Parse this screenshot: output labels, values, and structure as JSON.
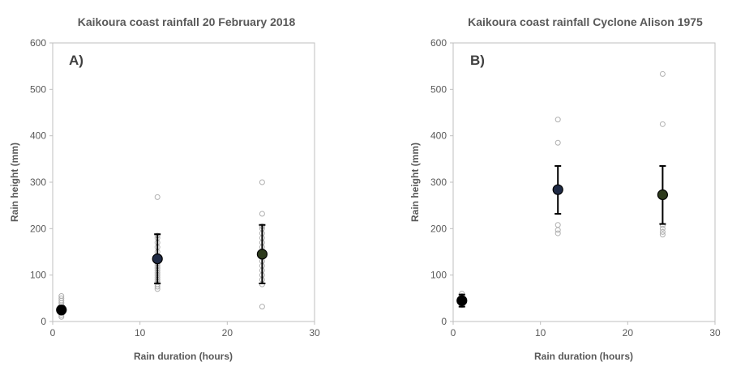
{
  "chart_data": [
    {
      "type": "scatter",
      "title": "Kaikoura coast rainfall 20 February 2018",
      "panel_label": "A)",
      "xlabel": "Rain duration (hours)",
      "ylabel": "Rain height (mm)",
      "xlim": [
        0,
        30
      ],
      "ylim": [
        0,
        600
      ],
      "xticks": [
        0,
        10,
        20,
        30
      ],
      "yticks": [
        0,
        100,
        200,
        300,
        400,
        500,
        600
      ],
      "grid": false,
      "individual_points": [
        {
          "x": 1,
          "values": [
            10,
            14,
            18,
            22,
            26,
            30,
            35,
            40,
            45,
            50,
            55
          ]
        },
        {
          "x": 12,
          "values": [
            70,
            75,
            80,
            85,
            90,
            95,
            100,
            105,
            110,
            115,
            120,
            125,
            130,
            140,
            150,
            160,
            170,
            180,
            185,
            268
          ]
        },
        {
          "x": 24,
          "values": [
            32,
            80,
            90,
            100,
            110,
            120,
            130,
            140,
            150,
            160,
            170,
            180,
            190,
            200,
            205,
            232,
            300
          ]
        }
      ],
      "means": [
        {
          "x": 1,
          "y": 25,
          "lower": 17,
          "upper": 33,
          "color": "#000000"
        },
        {
          "x": 12,
          "y": 135,
          "lower": 82,
          "upper": 188,
          "color": "#1f2a44"
        },
        {
          "x": 24,
          "y": 145,
          "lower": 82,
          "upper": 208,
          "color": "#2d3a1c"
        }
      ]
    },
    {
      "type": "scatter",
      "title": "Kaikoura coast rainfall Cyclone Alison 1975",
      "panel_label": "B)",
      "xlabel": "Rain duration (hours)",
      "ylabel": "Rain height (mm)",
      "xlim": [
        0,
        30
      ],
      "ylim": [
        0,
        600
      ],
      "xticks": [
        0,
        10,
        20,
        30
      ],
      "yticks": [
        0,
        100,
        200,
        300,
        400,
        500,
        600
      ],
      "grid": false,
      "individual_points": [
        {
          "x": 1,
          "values": [
            35,
            40,
            45,
            50,
            55,
            60
          ]
        },
        {
          "x": 12,
          "values": [
            190,
            197,
            208,
            385,
            435
          ]
        },
        {
          "x": 24,
          "values": [
            187,
            193,
            200,
            207,
            425,
            533
          ]
        }
      ],
      "means": [
        {
          "x": 1,
          "y": 45,
          "lower": 32,
          "upper": 58,
          "color": "#000000"
        },
        {
          "x": 12,
          "y": 284,
          "lower": 232,
          "upper": 335,
          "color": "#1f2a44"
        },
        {
          "x": 24,
          "y": 273,
          "lower": 210,
          "upper": 335,
          "color": "#2d3a1c"
        }
      ]
    }
  ]
}
